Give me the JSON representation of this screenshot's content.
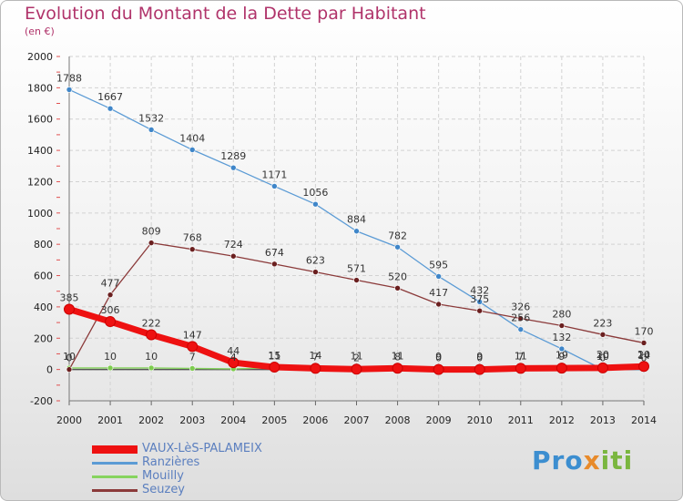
{
  "chart_data": {
    "type": "line",
    "title": "Evolution du Montant de la Dette par Habitant",
    "subtitle": "(en €)",
    "xlabel": "",
    "ylabel": "",
    "ylim": [
      -200,
      2000
    ],
    "yticks": [
      -200,
      0,
      200,
      400,
      600,
      800,
      1000,
      1200,
      1400,
      1600,
      1800,
      2000
    ],
    "x": [
      "2000",
      "2001",
      "2002",
      "2003",
      "2004",
      "2005",
      "2006",
      "2007",
      "2008",
      "2009",
      "2010",
      "2011",
      "2012",
      "2013",
      "2014"
    ],
    "series": [
      {
        "name": "VAUX-LèS-PALAMEIX",
        "color": "#ee1111",
        "marker_color": "#ee1111",
        "thick": true,
        "values": [
          385,
          306,
          222,
          147,
          44,
          15,
          7,
          2,
          8,
          0,
          0,
          7,
          9,
          10,
          20
        ],
        "labels": [
          "385",
          "306",
          "222",
          "147",
          "44",
          "15",
          "7",
          "2",
          "8",
          "0",
          "0",
          "7",
          "9",
          "10",
          "20"
        ]
      },
      {
        "name": "Ranzières",
        "color": "#5b9bd5",
        "marker_color": "#3f86c9",
        "thick": false,
        "values": [
          1788,
          1667,
          1532,
          1404,
          1289,
          1171,
          1056,
          884,
          782,
          595,
          432,
          256,
          132,
          0,
          0
        ],
        "labels": [
          "1788",
          "1667",
          "1532",
          "1404",
          "1289",
          "1171",
          "1056",
          "884",
          "782",
          "595",
          "432",
          "256",
          "132",
          "0",
          "0"
        ]
      },
      {
        "name": "Mouilly",
        "color": "#86d45f",
        "marker_color": "#7dcc4e",
        "thick": false,
        "values": [
          10,
          10,
          10,
          7,
          4,
          11,
          14,
          11,
          11,
          9,
          9,
          11,
          19,
          20,
          14
        ],
        "labels": [
          "10",
          "10",
          "10",
          "7",
          "4",
          "11",
          "14",
          "11",
          "11",
          "9",
          "9",
          "11",
          "19",
          "20",
          "14"
        ]
      },
      {
        "name": "Seuzey",
        "color": "#8b3a3a",
        "marker_color": "#6a1f1f",
        "thick": false,
        "values": [
          0,
          477,
          809,
          768,
          724,
          674,
          623,
          571,
          520,
          417,
          375,
          326,
          280,
          223,
          170
        ],
        "labels": [
          "0",
          "477",
          "809",
          "768",
          "724",
          "674",
          "623",
          "571",
          "520",
          "417",
          "375",
          "326",
          "280",
          "223",
          "170"
        ]
      }
    ]
  }
}
